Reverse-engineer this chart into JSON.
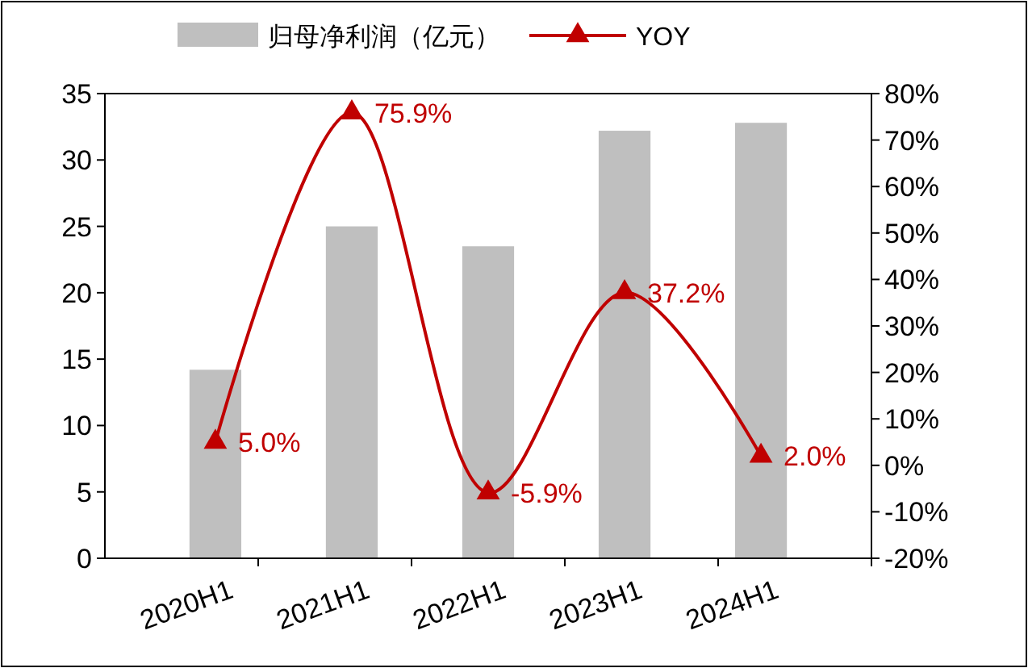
{
  "chart_data": {
    "type": "bar",
    "categories": [
      "2020H1",
      "2021H1",
      "2022H1",
      "2023H1",
      "2024H1"
    ],
    "series": [
      {
        "name": "归母净利润（亿元）",
        "color": "#bfbfbf",
        "values": [
          14.2,
          25.0,
          23.5,
          32.2,
          32.8
        ]
      },
      {
        "name": "YOY",
        "type": "line",
        "axis": "y2",
        "color": "#c00000",
        "marker": "triangle",
        "values": [
          5.0,
          75.9,
          -5.9,
          37.2,
          2.0
        ],
        "value_labels": [
          "5.0%",
          "75.9%",
          "-5.9%",
          "37.2%",
          "2.0%"
        ]
      }
    ],
    "ylim": [
      0,
      35
    ],
    "yticks": [
      0,
      5,
      10,
      15,
      20,
      25,
      30,
      35
    ],
    "y2lim": [
      -20,
      80
    ],
    "y2ticks": [
      {
        "value": -20,
        "label": "-20%"
      },
      {
        "value": -10,
        "label": "-10%"
      },
      {
        "value": 0,
        "label": "0%"
      },
      {
        "value": 10,
        "label": "10%"
      },
      {
        "value": 20,
        "label": "20%"
      },
      {
        "value": 30,
        "label": "30%"
      },
      {
        "value": 40,
        "label": "40%"
      },
      {
        "value": 50,
        "label": "50%"
      },
      {
        "value": 60,
        "label": "60%"
      },
      {
        "value": 70,
        "label": "70%"
      },
      {
        "value": 80,
        "label": "80%"
      }
    ],
    "legend": "top",
    "grid": false
  }
}
